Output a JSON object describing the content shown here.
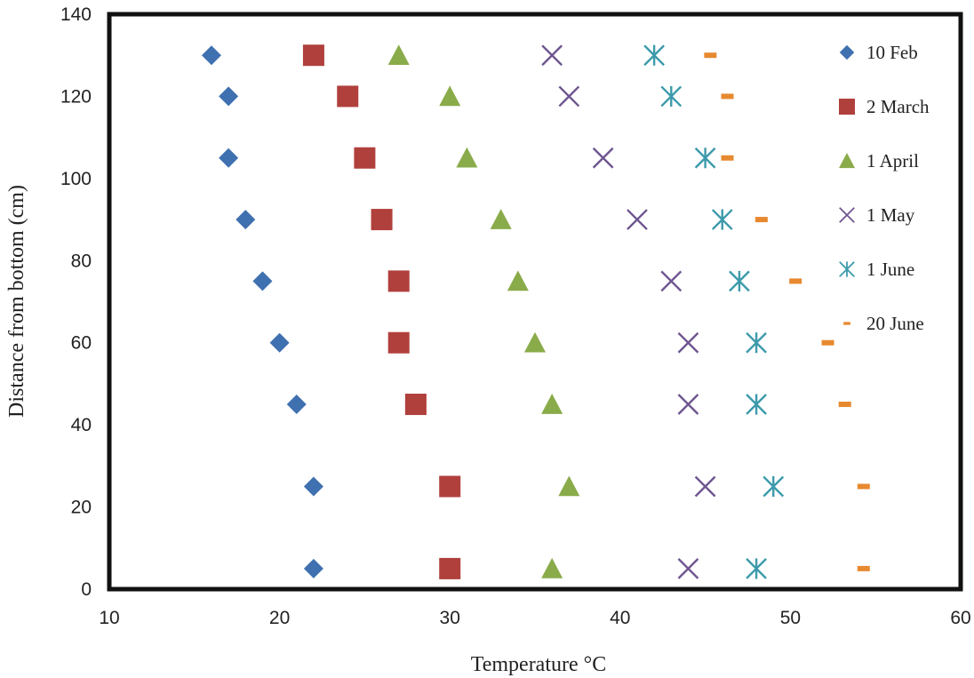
{
  "chart_data": {
    "type": "scatter",
    "title": "",
    "xlabel": "Temperature °C",
    "ylabel": "Distance from bottom (cm)",
    "xlim": [
      10,
      60
    ],
    "ylim": [
      0,
      140
    ],
    "xticks": [
      10,
      20,
      30,
      40,
      50,
      60
    ],
    "yticks": [
      0,
      20,
      40,
      60,
      80,
      100,
      120,
      140
    ],
    "grid": false,
    "legend_position": "right",
    "y": [
      5,
      25,
      45,
      60,
      75,
      90,
      105,
      120,
      130
    ],
    "series": [
      {
        "name": "10 Feb",
        "marker": "diamond",
        "color": "#3f70b0",
        "values": [
          22,
          22,
          21,
          20,
          19,
          18,
          17,
          17,
          16
        ]
      },
      {
        "name": "2 March",
        "marker": "square",
        "color": "#b0403c",
        "values": [
          30,
          30,
          28,
          27,
          27,
          26,
          25,
          24,
          22
        ]
      },
      {
        "name": "1 April",
        "marker": "triangle",
        "color": "#8aab4a",
        "values": [
          36,
          37,
          36,
          35,
          34,
          33,
          31,
          30,
          27
        ]
      },
      {
        "name": "1 May",
        "marker": "x",
        "color": "#6e5590",
        "values": [
          44,
          45,
          44,
          44,
          43,
          41,
          39,
          37,
          36
        ]
      },
      {
        "name": "1 June",
        "marker": "star",
        "color": "#3c9aab",
        "values": [
          48,
          49,
          48,
          48,
          47,
          46,
          45,
          43,
          42
        ]
      },
      {
        "name": "20 June",
        "marker": "dash",
        "color": "#e7892f",
        "values": [
          54.3,
          54.3,
          53.2,
          52.2,
          50.3,
          48.3,
          46.3,
          46.3,
          45.3
        ]
      }
    ]
  }
}
